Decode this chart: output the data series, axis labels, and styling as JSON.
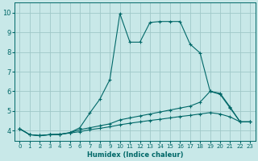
{
  "title": "",
  "xlabel": "Humidex (Indice chaleur)",
  "background_color": "#c8e8e8",
  "grid_color": "#a0c8c8",
  "line_color": "#006868",
  "xlim": [
    -0.5,
    23.5
  ],
  "ylim": [
    3.5,
    10.5
  ],
  "xticks": [
    0,
    1,
    2,
    3,
    4,
    5,
    6,
    7,
    8,
    9,
    10,
    11,
    12,
    13,
    14,
    15,
    16,
    17,
    18,
    19,
    20,
    21,
    22,
    23
  ],
  "yticks": [
    4,
    5,
    6,
    7,
    8,
    9,
    10
  ],
  "line1_x": [
    0,
    1,
    2,
    3,
    4,
    5,
    6,
    7,
    8,
    9,
    10,
    11,
    12,
    13,
    14,
    15,
    16,
    17,
    18,
    19,
    20,
    21,
    22,
    23
  ],
  "line1_y": [
    4.1,
    3.8,
    3.75,
    3.8,
    3.8,
    3.9,
    4.15,
    4.9,
    5.6,
    6.6,
    9.95,
    8.5,
    8.5,
    9.5,
    9.55,
    9.55,
    9.55,
    8.4,
    7.95,
    6.0,
    5.9,
    5.2,
    4.45,
    4.45
  ],
  "line2_x": [
    0,
    1,
    2,
    3,
    4,
    5,
    6,
    7,
    8,
    9,
    10,
    11,
    12,
    13,
    14,
    15,
    16,
    17,
    18,
    19,
    20,
    21,
    22,
    23
  ],
  "line2_y": [
    4.1,
    3.8,
    3.75,
    3.8,
    3.82,
    3.9,
    4.05,
    4.15,
    4.25,
    4.35,
    4.55,
    4.65,
    4.75,
    4.85,
    4.95,
    5.05,
    5.15,
    5.25,
    5.45,
    6.0,
    5.85,
    5.15,
    4.45,
    4.45
  ],
  "line3_x": [
    0,
    1,
    2,
    3,
    4,
    5,
    6,
    7,
    8,
    9,
    10,
    11,
    12,
    13,
    14,
    15,
    16,
    17,
    18,
    19,
    20,
    21,
    22,
    23
  ],
  "line3_y": [
    4.1,
    3.8,
    3.75,
    3.8,
    3.82,
    3.88,
    3.95,
    4.05,
    4.12,
    4.2,
    4.3,
    4.38,
    4.45,
    4.52,
    4.58,
    4.65,
    4.72,
    4.78,
    4.85,
    4.92,
    4.85,
    4.7,
    4.45,
    4.45
  ],
  "xlabel_fontsize": 6,
  "tick_fontsize": 5,
  "ytick_fontsize": 6,
  "linewidth": 0.8,
  "markersize": 3
}
